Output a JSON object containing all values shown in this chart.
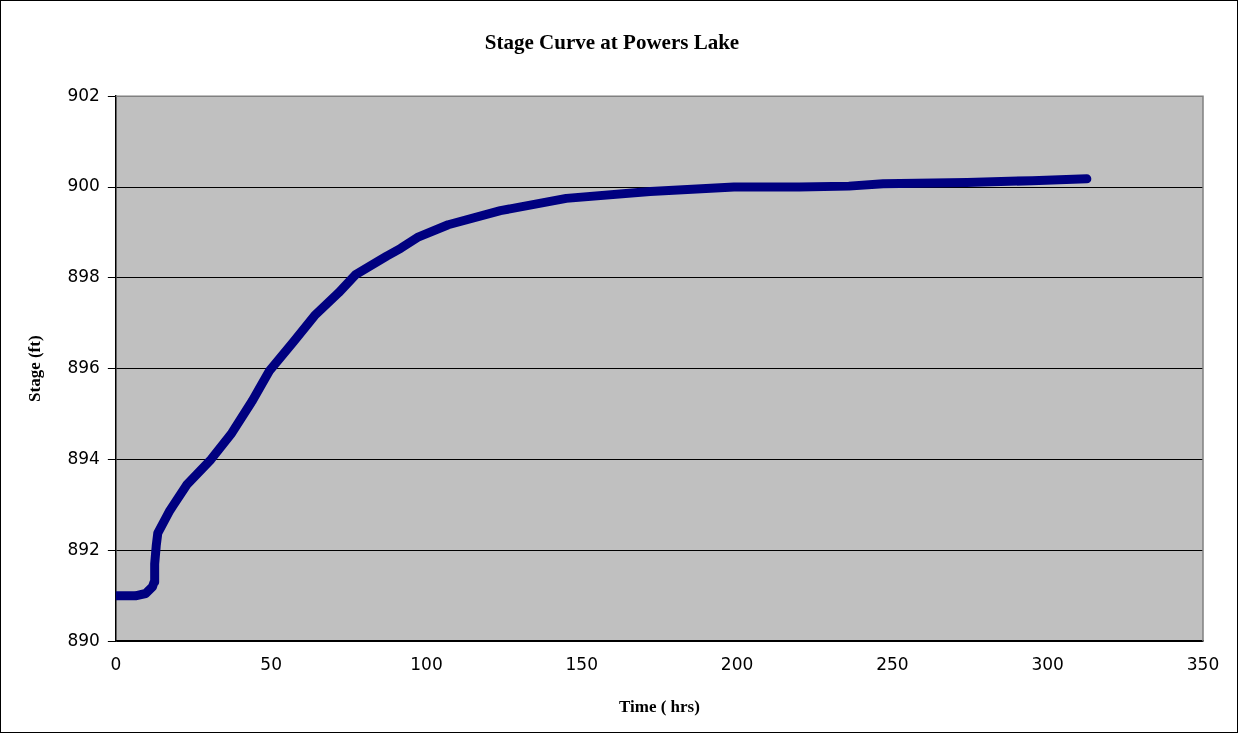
{
  "chart_data": {
    "type": "line",
    "title": "Stage Curve at Powers Lake",
    "xlabel": "Time ( hrs)",
    "ylabel": "Stage (ft)",
    "x": [
      0,
      3,
      6.3,
      9.6,
      11.8,
      12.3,
      12.5,
      13,
      13.5,
      17.4,
      22.8,
      30.6,
      37.3,
      44,
      49.5,
      57.3,
      64,
      71.7,
      77.2,
      87.2,
      91.7,
      97.1,
      107,
      123.8,
      145,
      172,
      199,
      220,
      236,
      247,
      274,
      295,
      312.6
    ],
    "series": [
      {
        "color": "#000080",
        "values": [
          891.0,
          891.0,
          891.0,
          891.05,
          891.2,
          891.3,
          891.7,
          892.1,
          892.38,
          892.88,
          893.44,
          894.0,
          894.58,
          895.3,
          895.96,
          896.6,
          897.17,
          897.67,
          898.07,
          898.48,
          898.65,
          898.89,
          899.17,
          899.48,
          899.75,
          899.9,
          900.0,
          900.0,
          900.02,
          900.07,
          900.1,
          900.14,
          900.18
        ]
      }
    ],
    "xlim": [
      0,
      350
    ],
    "xticks": [
      0,
      50,
      100,
      150,
      200,
      250,
      300,
      350
    ],
    "ylim": [
      890,
      902
    ],
    "yticks": [
      890,
      892,
      894,
      896,
      898,
      900,
      902
    ],
    "grid": "y",
    "legend": false,
    "marker": "none",
    "line_style": "solid"
  }
}
